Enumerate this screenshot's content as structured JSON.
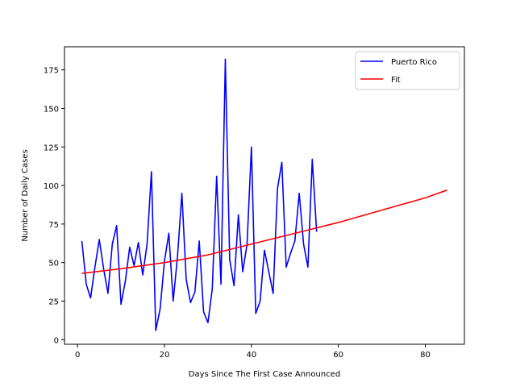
{
  "chart_data": {
    "type": "line",
    "title": "",
    "xlabel": "Days Since The First Case Announced",
    "ylabel": "Number of Daily Cases",
    "xlim": [
      -3,
      89
    ],
    "ylim": [
      -3,
      190
    ],
    "xticks": [
      0,
      20,
      40,
      60,
      80
    ],
    "yticks": [
      0,
      25,
      50,
      75,
      100,
      125,
      150,
      175
    ],
    "grid": false,
    "legend_position": "top-right",
    "series": [
      {
        "name": "Puerto Rico",
        "color": "#0000ff",
        "x": [
          1,
          2,
          3,
          4,
          5,
          6,
          7,
          8,
          9,
          10,
          11,
          12,
          13,
          14,
          15,
          16,
          17,
          18,
          19,
          20,
          21,
          22,
          23,
          24,
          25,
          26,
          27,
          28,
          29,
          30,
          31,
          32,
          33,
          34,
          35,
          36,
          37,
          38,
          39,
          40,
          41,
          42,
          43,
          44,
          45,
          46,
          47,
          48,
          49,
          50,
          51,
          52,
          53,
          54,
          55
        ],
        "y": [
          64,
          36,
          27,
          47,
          65,
          46,
          30,
          62,
          74,
          23,
          38,
          60,
          48,
          63,
          42,
          62,
          109,
          6,
          20,
          51,
          69,
          25,
          54,
          95,
          39,
          24,
          31,
          64,
          18,
          11,
          33,
          106,
          36,
          182,
          52,
          35,
          81,
          44,
          62,
          125,
          17,
          25,
          58,
          44,
          30,
          98,
          115,
          47,
          56,
          64,
          95,
          62,
          47,
          117,
          70
        ]
      },
      {
        "name": "Fit",
        "color": "#ff0000",
        "x": [
          1,
          10,
          20,
          30,
          40,
          50,
          60,
          70,
          80,
          85
        ],
        "y": [
          43,
          46,
          50,
          55,
          62,
          69,
          76,
          84,
          92,
          97
        ]
      }
    ]
  }
}
